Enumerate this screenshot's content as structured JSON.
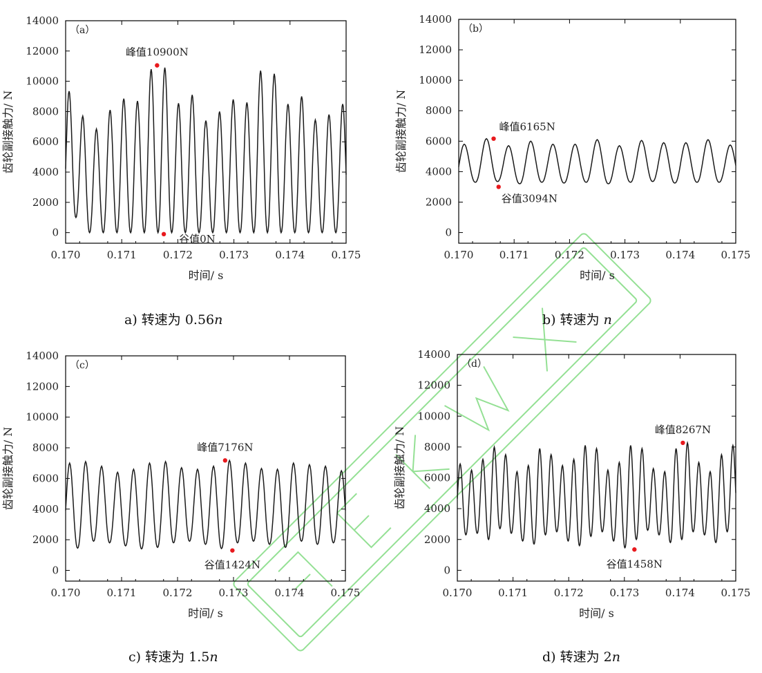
{
  "chart_data": [
    {
      "panel": "a",
      "type": "line",
      "panel_label": "（a）",
      "xlabel": "时间/ s",
      "ylabel": "齿轮副接触力/ N",
      "xlim": [
        0.17,
        0.175
      ],
      "ylim": [
        -700,
        14000
      ],
      "xticks": [
        "0.170",
        "0.171",
        "0.172",
        "0.173",
        "0.174",
        "0.175"
      ],
      "yticks": [
        "0",
        "2000",
        "4000",
        "6000",
        "8000",
        "10000",
        "12000",
        "14000"
      ],
      "grid": false,
      "caption_prefix": "a)  转速为 0.56",
      "caption_var": "n",
      "caption_suffix": "",
      "series": [
        {
          "x_start": 0.17,
          "x_end": 0.175,
          "peaks": [
            9350,
            7700,
            6850,
            8100,
            8850,
            8700,
            10800,
            10900,
            8550,
            9100,
            7400,
            8000,
            8800,
            8600,
            10700,
            10500,
            8500,
            9000,
            7450,
            7800,
            8500
          ],
          "valleys": [
            0,
            1000,
            0,
            0,
            0,
            0,
            0,
            0,
            0,
            0,
            0,
            0,
            0,
            0,
            0,
            0,
            0,
            0,
            0,
            0,
            0
          ]
        }
      ],
      "annotations": [
        {
          "label": "峰值10900N",
          "x": 0.17163,
          "y": 11050,
          "pos": "above"
        },
        {
          "label": "谷值0N",
          "x": 0.17175,
          "y": -100,
          "pos": "right"
        }
      ]
    },
    {
      "panel": "b",
      "type": "line",
      "panel_label": "（b）",
      "xlabel": "时间/ s",
      "ylabel": "齿轮副接触力/ N",
      "xlim": [
        0.17,
        0.175
      ],
      "ylim": [
        -700,
        14000
      ],
      "xticks": [
        "0.170",
        "0.171",
        "0.172",
        "0.173",
        "0.174",
        "0.175"
      ],
      "yticks": [
        "0",
        "2000",
        "4000",
        "6000",
        "8000",
        "10000",
        "12000",
        "14000"
      ],
      "grid": false,
      "caption_prefix": "b)  转速为 ",
      "caption_var": "n",
      "caption_suffix": "",
      "series": [
        {
          "x_start": 0.17,
          "x_end": 0.175,
          "peaks": [
            5800,
            6165,
            5700,
            6000,
            5800,
            5800,
            6100,
            5700,
            6050,
            5900,
            5900,
            6100,
            5750
          ],
          "valleys": [
            3094,
            3300,
            3350,
            3200,
            3300,
            3250,
            3300,
            3200,
            3300,
            3350,
            3250,
            3300,
            3300
          ]
        }
      ],
      "annotations": [
        {
          "label": "峰值6165N",
          "x": 0.17063,
          "y": 6165,
          "pos": "above-right"
        },
        {
          "label": "谷值3094N",
          "x": 0.17072,
          "y": 3000,
          "pos": "below-right"
        }
      ]
    },
    {
      "panel": "c",
      "type": "line",
      "panel_label": "（c）",
      "xlabel": "时间/ s",
      "ylabel": "齿轮副接触力/ N",
      "xlim": [
        0.17,
        0.175
      ],
      "ylim": [
        -700,
        14000
      ],
      "xticks": [
        "0.170",
        "0.171",
        "0.172",
        "0.173",
        "0.174",
        "0.175"
      ],
      "yticks": [
        "0",
        "2000",
        "4000",
        "6000",
        "8000",
        "10000",
        "12000",
        "14000"
      ],
      "grid": false,
      "caption_prefix": "c)  转速为 1.5",
      "caption_var": "n",
      "caption_suffix": "",
      "series": [
        {
          "x_start": 0.17,
          "x_end": 0.175,
          "peaks": [
            7000,
            7100,
            6800,
            6400,
            6600,
            7000,
            7100,
            6700,
            6600,
            6800,
            7176,
            7000,
            6650,
            6600,
            7000,
            6900,
            6800,
            6500
          ],
          "valleys": [
            1400,
            1450,
            1900,
            1800,
            1600,
            1400,
            1500,
            1800,
            1900,
            1700,
            1424,
            1800,
            1900,
            1700,
            1500,
            1900,
            1700,
            1800
          ]
        }
      ],
      "annotations": [
        {
          "label": "峰值7176N",
          "x": 0.17285,
          "y": 7176,
          "pos": "above"
        },
        {
          "label": "谷值1424N",
          "x": 0.17298,
          "y": 1300,
          "pos": "below"
        }
      ]
    },
    {
      "panel": "d",
      "type": "line",
      "panel_label": "（d）",
      "xlabel": "时间/ s",
      "ylabel": "齿轮副接触力/ N",
      "xlim": [
        0.17,
        0.175
      ],
      "ylim": [
        -700,
        14000
      ],
      "xticks": [
        "0.170",
        "0.171",
        "0.172",
        "0.173",
        "0.174",
        "0.175"
      ],
      "yticks": [
        "0",
        "2000",
        "4000",
        "6000",
        "8000",
        "10000",
        "12000",
        "14000"
      ],
      "grid": false,
      "caption_prefix": "d)  转速为 2",
      "caption_var": "n",
      "caption_suffix": "",
      "series": [
        {
          "x_start": 0.17,
          "x_end": 0.175,
          "peaks": [
            6900,
            6500,
            7200,
            8000,
            7500,
            6400,
            6800,
            7900,
            7500,
            6800,
            7200,
            8100,
            7900,
            6500,
            7000,
            8100,
            7900,
            6600,
            6400,
            7900,
            8267,
            7000,
            6400,
            7500,
            8100
          ],
          "valleys": [
            2800,
            2300,
            2400,
            2000,
            2700,
            2400,
            1900,
            1700,
            2300,
            2500,
            1900,
            1600,
            2200,
            2500,
            1900,
            1458,
            2000,
            2600,
            2300,
            1800,
            2000,
            2500,
            2300,
            1800,
            2500
          ]
        }
      ],
      "annotations": [
        {
          "label": "峰值8267N",
          "x": 0.17405,
          "y": 8267,
          "pos": "above"
        },
        {
          "label": "谷值1458N",
          "x": 0.17318,
          "y": 1350,
          "pos": "below"
        }
      ]
    }
  ],
  "colors": {
    "line": "#1a1a1a",
    "marker": "#e8191d",
    "axis": "#000000",
    "watermark": "#3ec83e"
  }
}
